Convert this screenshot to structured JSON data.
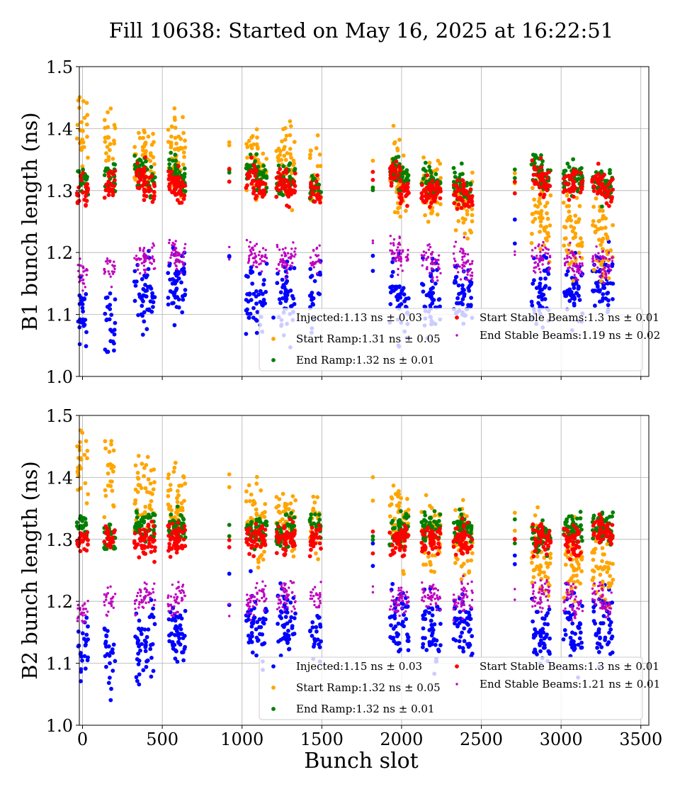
{
  "chart_data": {
    "type": "scatter",
    "title": "Fill 10638: Started on May 16, 2025 at 16:22:51",
    "xlabel": "Bunch slot",
    "xlim": [
      -20,
      3550
    ],
    "x_ticks": [
      "0",
      "500",
      "1000",
      "1500",
      "2000",
      "2500",
      "3000",
      "3500"
    ],
    "x_tick_values": [
      0,
      500,
      1000,
      1500,
      2000,
      2500,
      3000,
      3500
    ],
    "grid": true,
    "train_centers": [
      0,
      170,
      360,
      420,
      570,
      610,
      920,
      1060,
      1120,
      1250,
      1300,
      1460,
      1820,
      1960,
      2010,
      2160,
      2210,
      2360,
      2410,
      2710,
      2850,
      2900,
      3050,
      3100,
      3230,
      3290
    ],
    "panels": [
      {
        "ylabel": "B1 bunch length (ns)",
        "ylim": [
          1.0,
          1.5
        ],
        "y_ticks": [
          "1.0",
          "1.1",
          "1.2",
          "1.3",
          "1.4",
          "1.5"
        ],
        "y_tick_values": [
          1.0,
          1.1,
          1.2,
          1.3,
          1.4,
          1.5
        ],
        "legend_position": "lower-right",
        "series": [
          {
            "label": "Injected:1.13 ns ± 0.03",
            "color": "#0000ff",
            "mean": 1.13,
            "std": 0.03,
            "ratios": [
              0.97,
              0.96,
              1.0,
              1.01,
              1.01,
              1.02,
              1.06,
              1.0,
              0.99,
              1.0,
              1.0,
              1.0,
              1.07,
              1.0,
              0.99,
              0.99,
              1.0,
              1.0,
              1.0,
              1.06,
              1.0,
              1.01,
              1.0,
              1.0,
              1.01,
              1.01
            ]
          },
          {
            "label": "Start Ramp:1.31 ns ± 0.05",
            "color": "#ffa500",
            "mean": 1.31,
            "std": 0.05,
            "ratios": [
              1.07,
              1.05,
              1.04,
              1.03,
              1.04,
              1.03,
              1.05,
              1.03,
              1.02,
              1.04,
              1.02,
              1.01,
              1.03,
              1.02,
              1.0,
              1.0,
              0.99,
              0.98,
              0.98,
              1.0,
              0.97,
              0.95,
              0.95,
              0.93,
              0.94,
              0.93
            ]
          },
          {
            "label": "End Ramp:1.32 ns ± 0.01",
            "color": "#008000",
            "mean": 1.32,
            "std": 0.01,
            "ratios": [
              1.0,
              1.0,
              1.01,
              1.0,
              1.01,
              1.0,
              1.01,
              1.01,
              1.0,
              1.0,
              1.0,
              0.99,
              1.0,
              1.01,
              1.0,
              1.0,
              0.99,
              0.99,
              0.98,
              1.01,
              1.01,
              1.0,
              1.0,
              1.0,
              1.0,
              0.99
            ]
          },
          {
            "label": "Start Stable Beams:1.3 ns ± 0.01",
            "color": "#ff0000",
            "mean": 1.3,
            "std": 0.01,
            "ratios": [
              1.0,
              1.01,
              1.02,
              1.0,
              1.01,
              1.0,
              1.02,
              1.02,
              1.0,
              1.01,
              1.0,
              1.0,
              1.02,
              1.02,
              1.0,
              1.0,
              1.0,
              1.0,
              0.99,
              1.01,
              1.02,
              1.01,
              1.01,
              1.01,
              1.01,
              1.0
            ]
          },
          {
            "label": "End Stable Beams:1.19 ns ± 0.02",
            "color": "#bf00bf",
            "mean": 1.19,
            "std": 0.02,
            "ratios": [
              0.98,
              0.99,
              1.0,
              1.0,
              1.01,
              1.0,
              1.01,
              1.01,
              1.0,
              1.0,
              1.0,
              1.0,
              1.03,
              1.01,
              1.0,
              1.0,
              0.99,
              1.0,
              0.99,
              1.01,
              1.0,
              1.0,
              1.0,
              0.99,
              1.0,
              0.99
            ]
          }
        ]
      },
      {
        "ylabel": "B2 bunch length (ns)",
        "ylim": [
          1.0,
          1.5
        ],
        "y_ticks": [
          "1.0",
          "1.1",
          "1.2",
          "1.3",
          "1.4",
          "1.5"
        ],
        "y_tick_values": [
          1.0,
          1.1,
          1.2,
          1.3,
          1.4,
          1.5
        ],
        "legend_position": "lower-right",
        "series": [
          {
            "label": "Injected:1.15 ns ± 0.03",
            "color": "#0000ff",
            "mean": 1.15,
            "std": 0.03,
            "ratios": [
              0.97,
              0.97,
              0.98,
              0.99,
              1.0,
              1.0,
              1.07,
              1.02,
              1.0,
              1.02,
              1.01,
              1.0,
              1.08,
              1.02,
              1.01,
              1.01,
              1.0,
              1.02,
              1.01,
              1.09,
              1.0,
              1.0,
              1.02,
              1.0,
              1.01,
              1.01
            ]
          },
          {
            "label": "Start Ramp:1.32 ns ± 0.05",
            "color": "#ffa500",
            "mean": 1.32,
            "std": 0.05,
            "ratios": [
              1.08,
              1.06,
              1.05,
              1.04,
              1.04,
              1.03,
              1.06,
              1.02,
              1.0,
              1.01,
              1.0,
              1.0,
              1.04,
              1.01,
              1.0,
              0.99,
              0.99,
              0.98,
              0.98,
              1.01,
              0.97,
              0.96,
              0.96,
              0.95,
              0.95,
              0.94
            ]
          },
          {
            "label": "End Ramp:1.32 ns ± 0.01",
            "color": "#008000",
            "mean": 1.32,
            "std": 0.01,
            "ratios": [
              1.0,
              0.99,
              1.0,
              1.0,
              1.0,
              1.0,
              0.99,
              0.99,
              1.0,
              0.99,
              1.0,
              1.0,
              0.99,
              0.99,
              1.0,
              1.0,
              1.0,
              1.0,
              1.0,
              0.99,
              0.99,
              0.99,
              1.0,
              1.0,
              1.0,
              1.0
            ]
          },
          {
            "label": "Start Stable Beams:1.3 ns ± 0.01",
            "color": "#ff0000",
            "mean": 1.3,
            "std": 0.01,
            "ratios": [
              1.0,
              1.0,
              1.0,
              1.0,
              1.0,
              1.0,
              1.0,
              1.0,
              1.0,
              1.0,
              1.0,
              1.0,
              1.0,
              1.0,
              1.0,
              1.0,
              1.0,
              1.0,
              1.0,
              1.0,
              1.0,
              1.0,
              1.0,
              1.0,
              1.01,
              1.01
            ]
          },
          {
            "label": "End Stable Beams:1.21 ns ± 0.01",
            "color": "#bf00bf",
            "mean": 1.21,
            "std": 0.01,
            "ratios": [
              0.98,
              0.99,
              0.99,
              1.0,
              0.99,
              1.0,
              0.98,
              0.99,
              1.0,
              1.0,
              1.0,
              1.0,
              1.01,
              0.99,
              1.0,
              1.0,
              1.0,
              0.99,
              1.0,
              1.0,
              1.0,
              1.0,
              1.0,
              0.99,
              1.0,
              0.99
            ]
          }
        ]
      }
    ]
  }
}
